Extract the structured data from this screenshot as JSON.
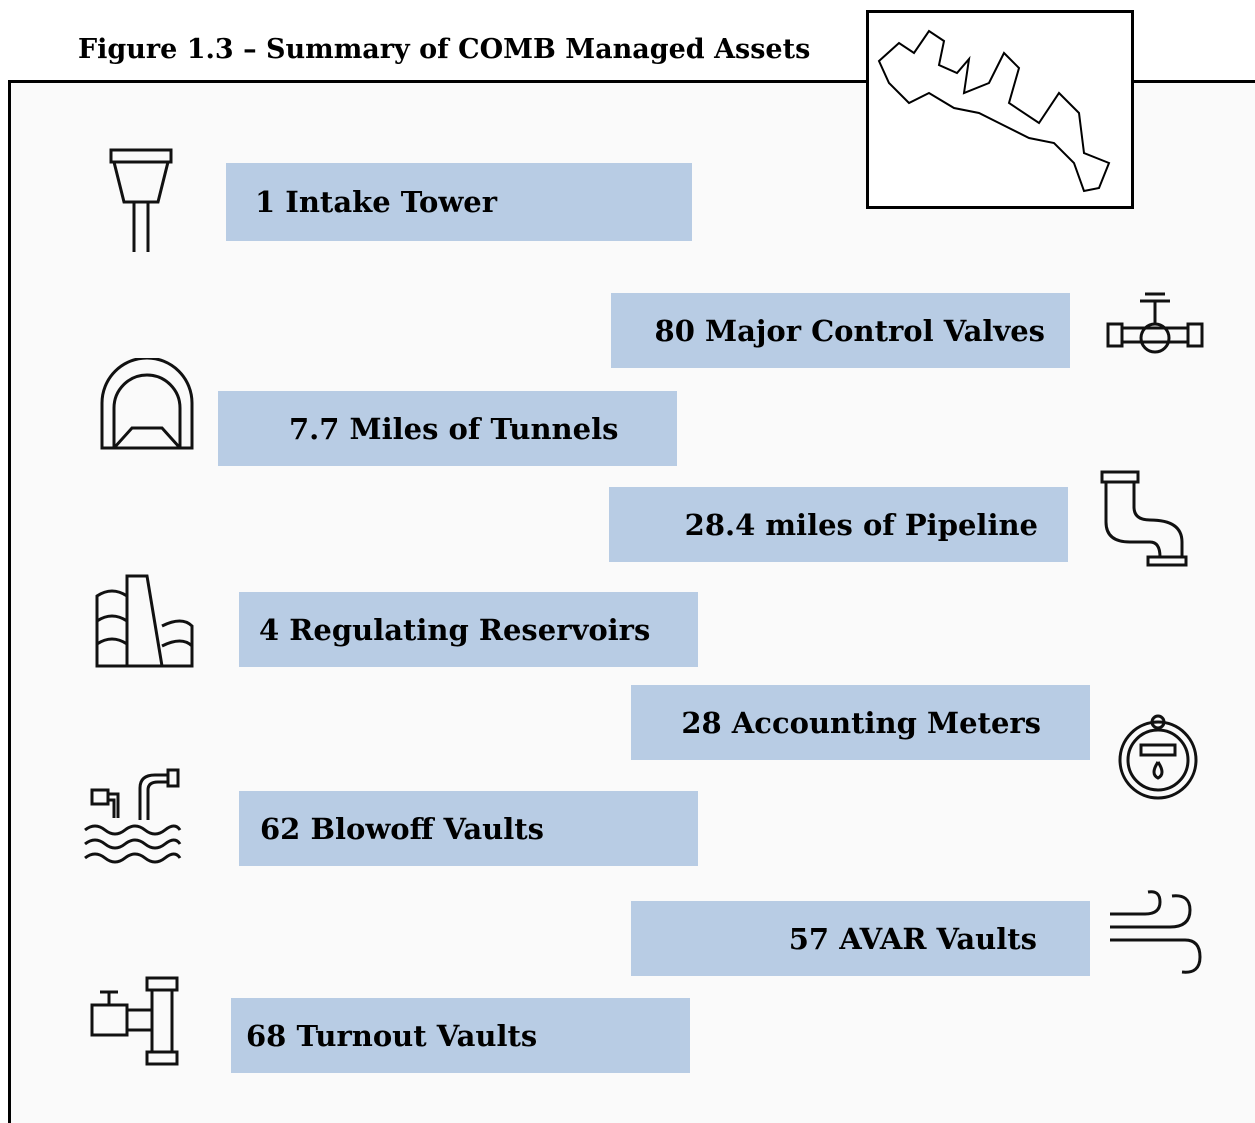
{
  "title": "Figure 1.3 – Summary of COMB Managed Assets",
  "items": [
    {
      "label": "1 Intake Tower"
    },
    {
      "label": "80 Major Control Valves"
    },
    {
      "label": "7.7 Miles of Tunnels"
    },
    {
      "label": "28.4 miles of Pipeline"
    },
    {
      "label": "4 Regulating Reservoirs"
    },
    {
      "label": "28 Accounting Meters"
    },
    {
      "label": "62 Blowoff Vaults"
    },
    {
      "label": "57 AVAR Vaults"
    },
    {
      "label": "68 Turnout Vaults"
    }
  ]
}
